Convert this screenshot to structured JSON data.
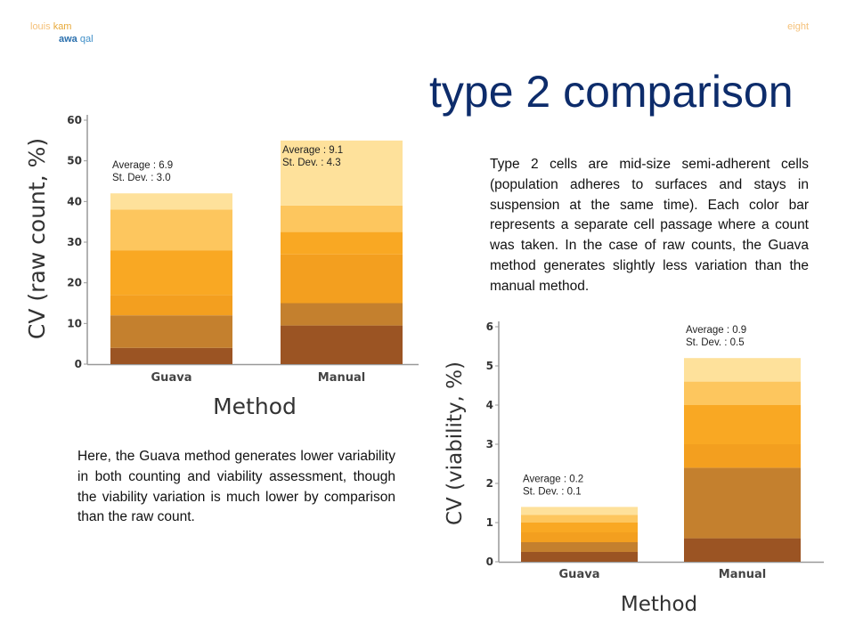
{
  "header": {
    "left_line1_a": "louis",
    "left_line1_b": "kam",
    "left_line2_a": "awa",
    "left_line2_b": "qal",
    "right": "eight"
  },
  "title": "type 2 comparison",
  "paragraph_right": "Type 2 cells are mid-size semi-adherent cells (population adheres to surfaces and stays in suspension at the same time). Each color bar represents a separate cell passage where a count was taken. In the case of raw counts, the Guava method generates slightly less variation than the manual method.",
  "paragraph_left": "Here, the Guava method generates lower variability in both counting and viability assessment, though the viability variation is much lower by comparison than the raw count.",
  "colors": {
    "layers": [
      "#9b5423",
      "#c4802e",
      "#f39f1f",
      "#f9a823",
      "#fdc65e",
      "#fee19b"
    ]
  },
  "chart_data": [
    {
      "type": "bar",
      "stacked": true,
      "xlabel": "Method",
      "ylabel": "CV (raw count, %)",
      "ylim": [
        0,
        60
      ],
      "yticks": [
        0,
        10,
        20,
        30,
        40,
        50,
        60
      ],
      "categories": [
        "Guava",
        "Manual"
      ],
      "series": [
        {
          "values": [
            4,
            9.5
          ]
        },
        {
          "values": [
            8,
            5.5
          ]
        },
        {
          "values": [
            5,
            12
          ]
        },
        {
          "values": [
            11,
            5.5
          ]
        },
        {
          "values": [
            10,
            6.5
          ]
        },
        {
          "values": [
            4,
            16
          ]
        }
      ],
      "annotations": [
        {
          "category": "Guava",
          "line1": "Average : 6.9",
          "line2": "St. Dev. : 3.0"
        },
        {
          "category": "Manual",
          "line1": "Average : 9.1",
          "line2": "St. Dev. : 4.3"
        }
      ]
    },
    {
      "type": "bar",
      "stacked": true,
      "xlabel": "Method",
      "ylabel": "CV (viability, %)",
      "ylim": [
        0,
        6
      ],
      "yticks": [
        0,
        1,
        2,
        3,
        4,
        5,
        6
      ],
      "categories": [
        "Guava",
        "Manual"
      ],
      "series": [
        {
          "values": [
            0.25,
            0.6
          ]
        },
        {
          "values": [
            0.25,
            1.8
          ]
        },
        {
          "values": [
            0.25,
            0.6
          ]
        },
        {
          "values": [
            0.25,
            1.0
          ]
        },
        {
          "values": [
            0.2,
            0.6
          ]
        },
        {
          "values": [
            0.2,
            0.6
          ]
        }
      ],
      "annotations": [
        {
          "category": "Guava",
          "line1": "Average : 0.2",
          "line2": "St. Dev. : 0.1"
        },
        {
          "category": "Manual",
          "line1": "Average : 0.9",
          "line2": "St. Dev. : 0.5"
        }
      ]
    }
  ]
}
